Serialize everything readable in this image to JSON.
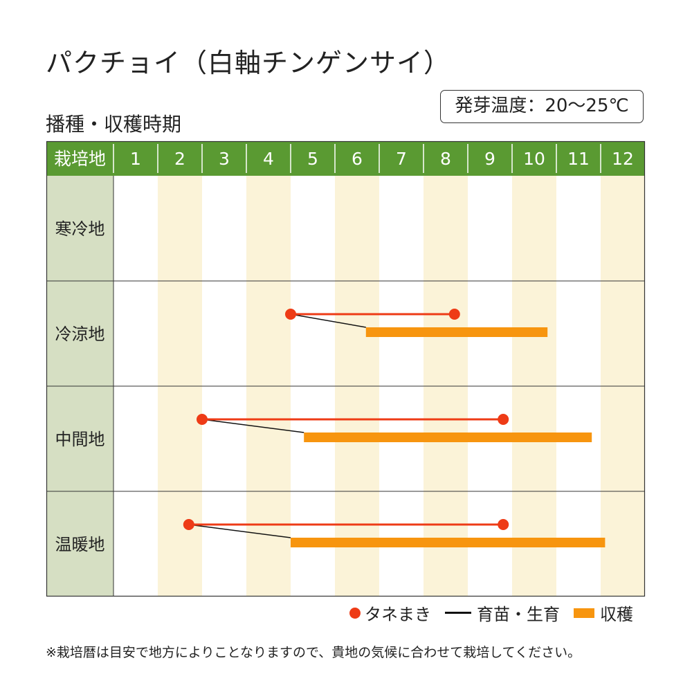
{
  "title": "パクチョイ（白軸チンゲンサイ）",
  "germination_temp": "発芽温度：20～25℃",
  "subtitle": "播種・収穫時期",
  "note": "※栽培暦は目安で地方によりことなりますので、貴地の気候に合わせて栽培してください。",
  "colors": {
    "header_green": "#5a9a32",
    "row_label_bg": "#d6dfc3",
    "stripe": "#fbf3d8",
    "sowing": "#ee3b16",
    "seedling": "#111111",
    "harvest": "#f7950f",
    "grid": "#333333",
    "header_text": "#ffffff"
  },
  "legend": [
    {
      "label": "タネまき",
      "icon": "red-dot",
      "color": "#ee3b16"
    },
    {
      "label": "育苗・生育",
      "icon": "black-line",
      "color": "#111111"
    },
    {
      "label": "収穫",
      "icon": "orange-bar",
      "color": "#f7950f"
    }
  ],
  "chart_data": {
    "type": "table",
    "header_label": "栽培地",
    "months": [
      "1",
      "2",
      "3",
      "4",
      "5",
      "6",
      "7",
      "8",
      "9",
      "10",
      "11",
      "12"
    ],
    "striped_months": [
      "2",
      "4",
      "6",
      "8",
      "10",
      "12"
    ],
    "regions": [
      {
        "name": "寒冷地",
        "sowing": null,
        "harvest": null
      },
      {
        "name": "冷涼地",
        "sowing": {
          "start": 5.0,
          "end": 8.7
        },
        "growth": {
          "from": 5.0,
          "to": 6.7
        },
        "harvest": {
          "start": 6.7,
          "end": 10.8
        }
      },
      {
        "name": "中間地",
        "sowing": {
          "start": 3.0,
          "end": 9.8
        },
        "growth": {
          "from": 3.0,
          "to": 5.3
        },
        "harvest": {
          "start": 5.3,
          "end": 11.8
        }
      },
      {
        "name": "温暖地",
        "sowing": {
          "start": 2.7,
          "end": 9.8
        },
        "growth": {
          "from": 2.7,
          "to": 5.0
        },
        "harvest": {
          "start": 5.0,
          "end": 12.1
        }
      }
    ]
  }
}
